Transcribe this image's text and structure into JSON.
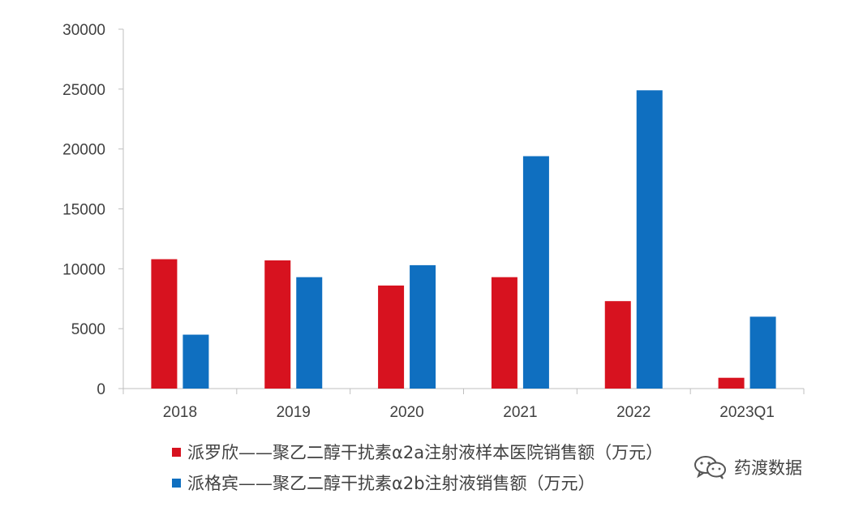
{
  "chart_data": {
    "type": "bar",
    "title": "",
    "xlabel": "",
    "ylabel": "",
    "categories": [
      "2018",
      "2019",
      "2020",
      "2021",
      "2022",
      "2023Q1"
    ],
    "ylim": [
      0,
      30000
    ],
    "yticks": [
      0,
      5000,
      10000,
      15000,
      20000,
      25000,
      30000
    ],
    "grid": false,
    "legend_position": "bottom",
    "series": [
      {
        "name": "派罗欣——聚乙二醇干扰素α2a注射液样本医院销售额（万元）",
        "color": "#d7121f",
        "values": [
          10800,
          10700,
          8600,
          9300,
          7300,
          900
        ]
      },
      {
        "name": "派格宾——聚乙二醇干扰素α2b注射液销售额（万元）",
        "color": "#0f6fc0",
        "values": [
          4500,
          9300,
          10300,
          19400,
          24900,
          6000
        ]
      }
    ]
  },
  "watermark": {
    "text": "药渡数据",
    "icon": "wechat-icon"
  }
}
